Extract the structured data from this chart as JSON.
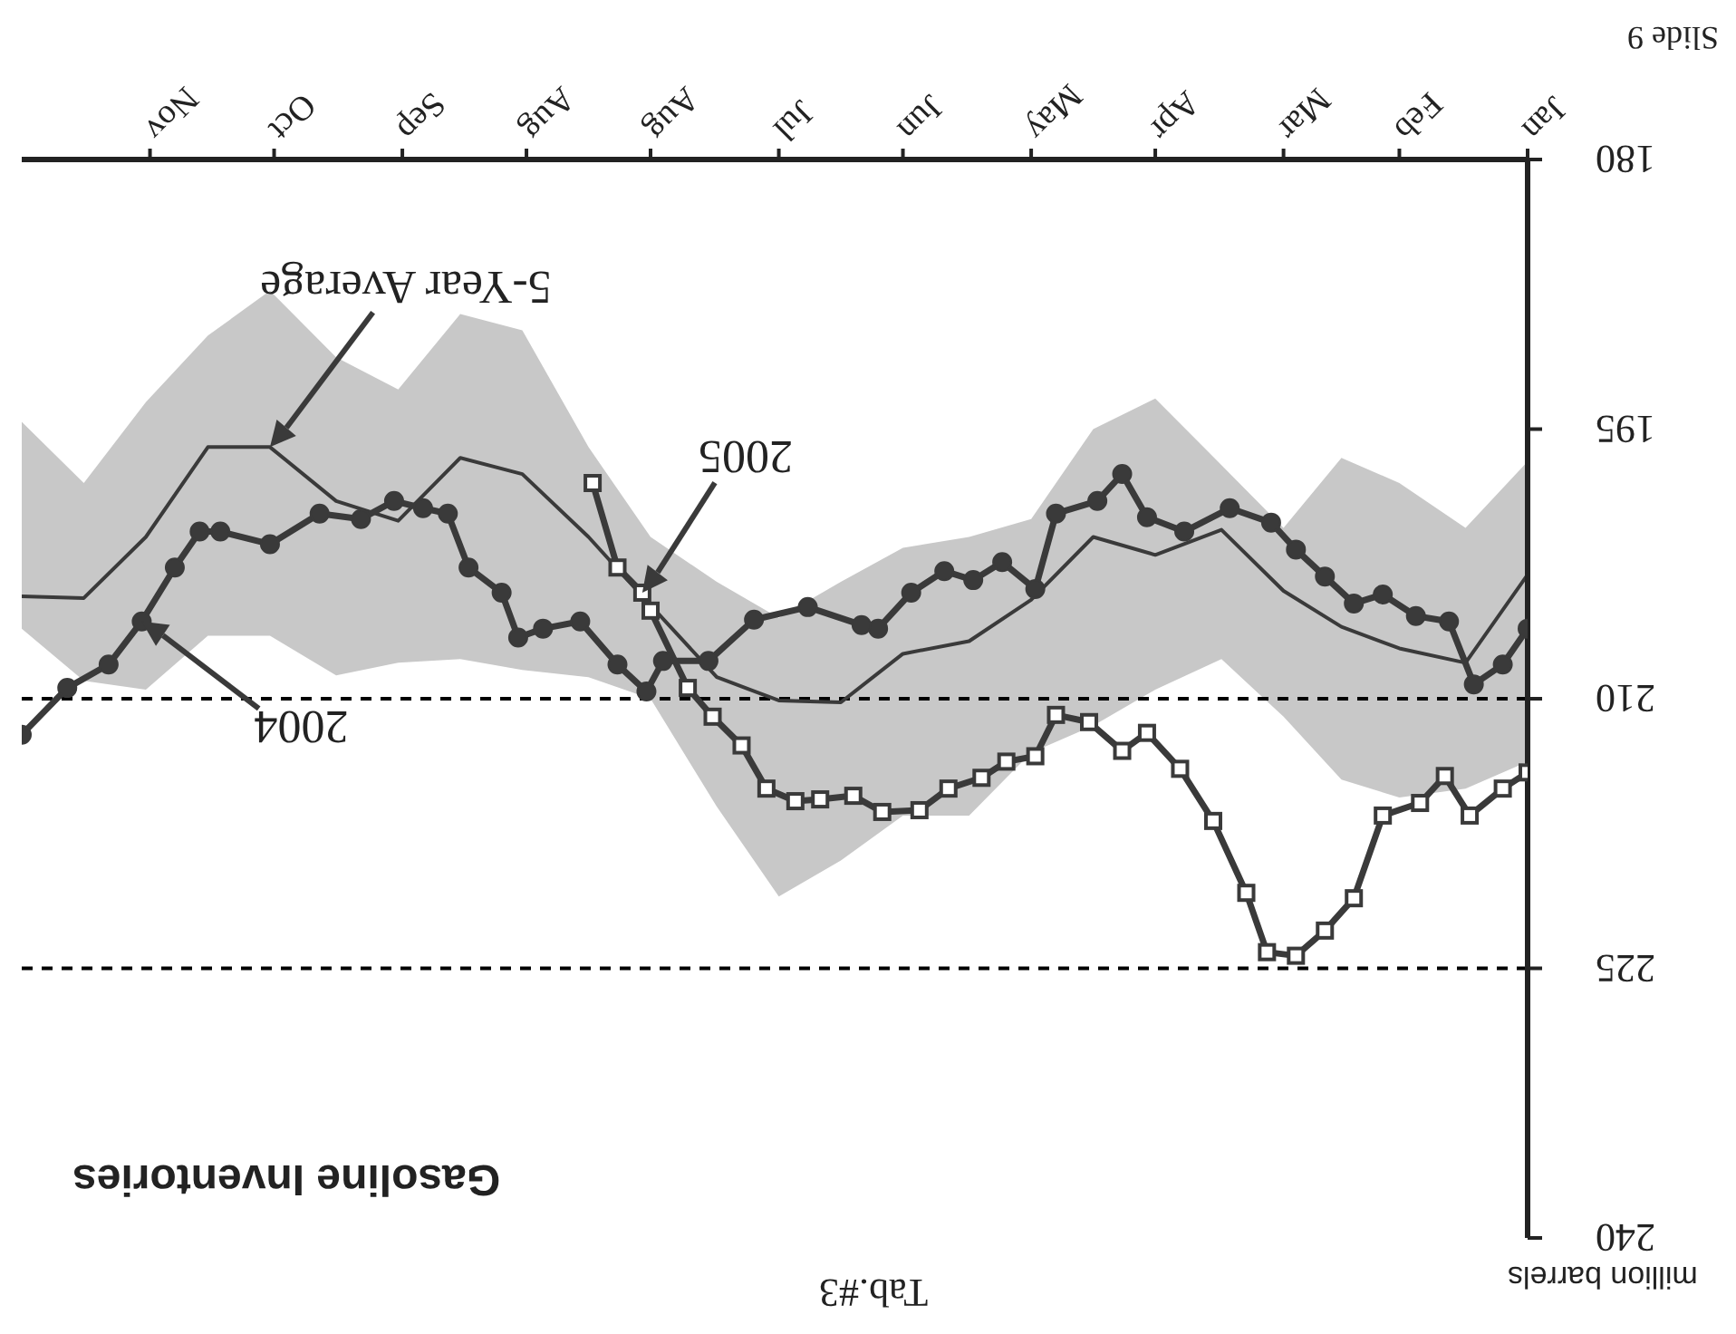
{
  "chart_data": {
    "type": "line",
    "title": "Gasoline Inventories",
    "ylabel": "million barrels",
    "xlim": [
      "--12-31",
      "--01-01"
    ],
    "xticks": [
      {
        "value": "--01-01",
        "label": "Jan"
      },
      {
        "value": "--02-01",
        "label": "Feb"
      },
      {
        "value": "--03-01",
        "label": "Mar"
      },
      {
        "value": "--04-01",
        "label": "Apr"
      },
      {
        "value": "--05-01",
        "label": "May"
      },
      {
        "value": "--06-01",
        "label": "Jun"
      },
      {
        "value": "--07-01",
        "label": "Jul"
      },
      {
        "value": "--08-01",
        "label": "Aug"
      },
      {
        "value": "--08-31",
        "label": "Aug"
      },
      {
        "value": "--09-30",
        "label": "Sep"
      },
      {
        "value": "--10-31",
        "label": "Oct"
      },
      {
        "value": "--11-30",
        "label": "Nov"
      }
    ],
    "ylim": [
      240,
      180
    ],
    "yticks": [
      180,
      195,
      210,
      225,
      240
    ],
    "series": [
      {
        "color": "#3a3a3a",
        "marker": "none",
        "x": [
          "--01-01",
          "--01-16",
          "--02-01",
          "--02-15",
          "--03-01",
          "--03-16",
          "--04-01",
          "--04-16",
          "--05-01",
          "--05-16",
          "--06-01",
          "--06-16",
          "--07-01",
          "--07-16",
          "--08-01",
          "--08-16",
          "--09-01",
          "--09-16",
          "--10-01",
          "--10-16",
          "--11-01",
          "--11-16",
          "--12-01",
          "--12-16",
          "--12-31"
        ],
        "values": [
          203.1,
          208.0,
          207.2,
          206.0,
          204.0,
          200.6,
          202.0,
          201.0,
          204.5,
          206.8,
          207.5,
          210.2,
          210.1,
          208.8,
          204.8,
          201.0,
          197.5,
          196.6,
          200.1,
          199.0,
          196.0,
          196.0,
          201.0,
          204.4,
          204.3
        ],
        "lower": [
          196.8,
          200.5,
          198,
          196.6,
          200.5,
          197,
          193.3,
          195,
          200,
          201,
          201.6,
          203.5,
          205.5,
          203.5,
          201,
          196,
          189.5,
          188.6,
          192.8,
          191,
          187.3,
          189.8,
          193.5,
          198,
          194.6
        ],
        "upper": [
          213.5,
          215,
          215.5,
          214.5,
          211,
          207.8,
          209.5,
          211.5,
          213,
          216.5,
          216.5,
          219,
          221,
          216,
          210,
          208.8,
          208.4,
          207.8,
          208,
          208.7,
          206.5,
          206.5,
          209.5,
          209,
          206.1
        ]
      },
      {
        "color": "#3a3a3a",
        "marker": "circle",
        "x": [
          "--01-01",
          "--01-07",
          "--01-14",
          "--01-20",
          "--01-28",
          "--02-05",
          "--02-12",
          "--02-19",
          "--02-26",
          "--03-04",
          "--03-14",
          "--03-25",
          "--04-03",
          "--04-09",
          "--04-15",
          "--04-25",
          "--04-30",
          "--05-08",
          "--05-15",
          "--05-22",
          "--05-30",
          "--06-07",
          "--06-11",
          "--06-24",
          "--07-07",
          "--07-18",
          "--07-29",
          "--08-02",
          "--08-09",
          "--08-18",
          "--08-27",
          "--09-02",
          "--09-06",
          "--09-14",
          "--09-19",
          "--09-25",
          "--10-02",
          "--10-10",
          "--10-20",
          "--11-01",
          "--11-13",
          "--11-18",
          "--11-24",
          "--12-02",
          "--12-10",
          "--12-20",
          "--12-31"
        ],
        "values": [
          206.1,
          208.1,
          209.2,
          205.7,
          205.4,
          204.2,
          204.7,
          203.2,
          201.7,
          200.2,
          199.4,
          200.7,
          199.9,
          197.5,
          199.0,
          199.7,
          203.9,
          202.4,
          203.4,
          202.9,
          204.1,
          206.1,
          205.9,
          204.9,
          205.6,
          207.9,
          207.9,
          209.6,
          208.1,
          205.7,
          206.1,
          206.6,
          204.1,
          202.7,
          199.7,
          199.4,
          199.0,
          200.0,
          199.7,
          201.4,
          200.7,
          200.7,
          202.7,
          205.7,
          208.1,
          209.4,
          212.0
        ]
      },
      {
        "color": "#3a3a3a",
        "marker": "square",
        "x": [
          "--01-01",
          "--01-07",
          "--01-15",
          "--01-21",
          "--01-27",
          "--02-05",
          "--02-12",
          "--02-19",
          "--02-26",
          "--03-05",
          "--03-10",
          "--03-18",
          "--03-26",
          "--04-03",
          "--04-09",
          "--04-17",
          "--04-25",
          "--04-30",
          "--05-07",
          "--05-13",
          "--05-21",
          "--05-28",
          "--06-06",
          "--06-13",
          "--06-21",
          "--06-27",
          "--07-04",
          "--07-10",
          "--07-17",
          "--07-23",
          "--08-01",
          "--08-03",
          "--08-09",
          "--08-15"
        ],
        "values": [
          214.1,
          215.0,
          216.5,
          214.3,
          215.8,
          216.5,
          221.1,
          222.9,
          224.3,
          224.1,
          220.8,
          216.8,
          213.9,
          211.9,
          212.9,
          211.3,
          210.9,
          213.2,
          213.5,
          214.4,
          215.0,
          216.2,
          216.3,
          215.4,
          215.6,
          215.7,
          215.0,
          212.6,
          211.0,
          209.4,
          205.1,
          204.1,
          202.7,
          198.0
        ]
      }
    ],
    "ref_lines": [
      {
        "axis": "y",
        "value": 210,
        "color": "#000000",
        "line_style": "dashed"
      },
      {
        "axis": "y",
        "value": 225,
        "color": "#000000",
        "line_style": "dashed"
      }
    ],
    "annotations": [
      {
        "text": "5-Year Average",
        "x": "--11-01",
        "y": 196.0
      },
      {
        "text": "2005",
        "x": "--08-03",
        "y": 204.1
      },
      {
        "text": "2004",
        "x": "--12-02",
        "y": 205.7
      },
      "Slide 9",
      "Tab.#3"
    ]
  }
}
